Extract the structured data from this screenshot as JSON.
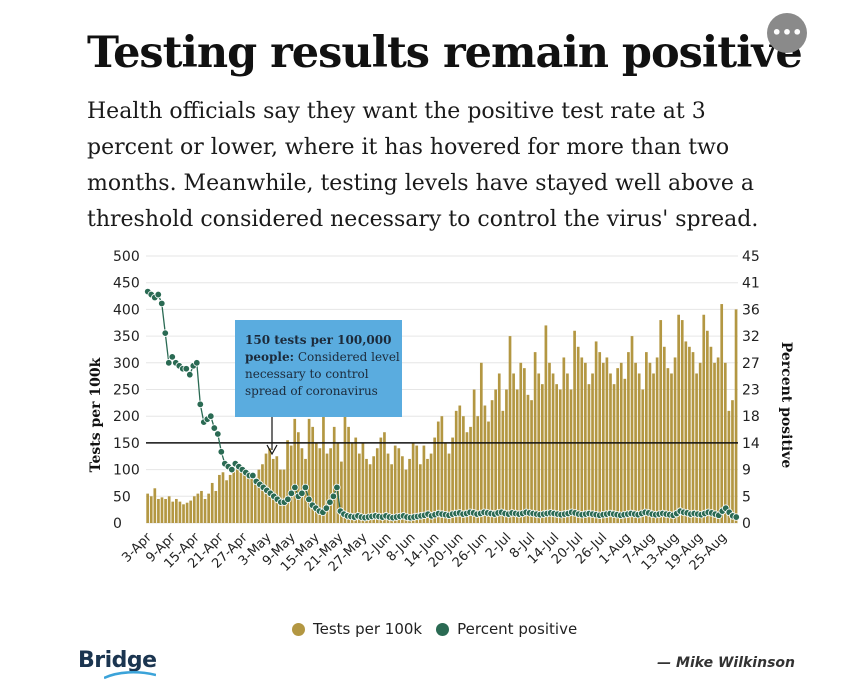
{
  "header": {
    "title": "Testing results remain positive",
    "subtitle": "Health officials say they want the positive test rate at 3 percent or lower, where it has hovered for more than two months. Meanwhile, testing levels have stayed well above a threshold considered necessary to control the virus' spread.",
    "menu_label": "•••"
  },
  "chart_data": {
    "type": "bar",
    "x_tick_labels": [
      "3-Apr",
      "9-Apr",
      "15-Apr",
      "21-Apr",
      "27-Apr",
      "3-May",
      "9-May",
      "15-May",
      "21-May",
      "27-May",
      "2-Jun",
      "8-Jun",
      "14-Jun",
      "20-Jun",
      "26-Jun",
      "2-Jul",
      "8-Jul",
      "14-Jul",
      "20-Jul",
      "26-Jul",
      "1-Aug",
      "7-Aug",
      "13-Aug",
      "19-Aug",
      "25-Aug"
    ],
    "left_axis": {
      "label": "Tests per 100k",
      "ylim": [
        0,
        500
      ],
      "ticks": [
        0,
        50,
        100,
        150,
        200,
        250,
        300,
        350,
        400,
        450,
        500
      ]
    },
    "right_axis": {
      "label": "Percent positive",
      "ylim": [
        0,
        45
      ],
      "ticks": [
        "0",
        "5",
        "9",
        "14",
        "18",
        "23",
        "27",
        "32",
        "36",
        "41",
        "45"
      ]
    },
    "series": [
      {
        "name": "Tests per 100k",
        "axis": "left",
        "color": "#b39742",
        "values": [
          55,
          50,
          65,
          45,
          48,
          45,
          50,
          40,
          45,
          40,
          35,
          38,
          42,
          50,
          55,
          60,
          45,
          55,
          75,
          60,
          90,
          95,
          80,
          90,
          100,
          110,
          105,
          100,
          95,
          90,
          85,
          100,
          110,
          130,
          140,
          120,
          125,
          100,
          100,
          155,
          145,
          195,
          170,
          140,
          120,
          195,
          180,
          150,
          140,
          210,
          130,
          140,
          180,
          150,
          115,
          200,
          180,
          150,
          160,
          130,
          150,
          120,
          110,
          125,
          140,
          160,
          170,
          130,
          110,
          145,
          140,
          125,
          100,
          120,
          150,
          145,
          110,
          145,
          120,
          130,
          160,
          190,
          200,
          150,
          130,
          160,
          210,
          220,
          200,
          170,
          180,
          250,
          200,
          300,
          220,
          190,
          230,
          250,
          280,
          210,
          250,
          350,
          280,
          250,
          300,
          290,
          240,
          230,
          320,
          280,
          260,
          370,
          300,
          280,
          260,
          250,
          310,
          280,
          250,
          360,
          330,
          310,
          300,
          260,
          280,
          340,
          320,
          300,
          310,
          280,
          260,
          290,
          300,
          270,
          320,
          350,
          300,
          280,
          250,
          320,
          300,
          280,
          310,
          380,
          330,
          290,
          280,
          310,
          390,
          380,
          340,
          330,
          320,
          280,
          300,
          390,
          360,
          330,
          300,
          310,
          410,
          300,
          210,
          230,
          400
        ]
      },
      {
        "name": "Percent positive",
        "axis": "right",
        "color": "#2a6a53",
        "values": [
          39,
          38.5,
          38,
          38.5,
          37,
          32,
          27,
          28,
          27,
          26.5,
          26,
          26,
          25,
          26.5,
          27,
          20,
          17,
          17.5,
          18,
          16,
          15,
          12,
          10,
          9.5,
          9,
          10,
          9.5,
          9,
          8.5,
          8,
          8,
          7,
          6.5,
          6,
          5.5,
          5,
          4.5,
          4,
          3.5,
          3.5,
          4,
          5,
          6,
          4.5,
          5,
          6,
          4,
          3,
          2.5,
          2,
          1.8,
          2.5,
          3.5,
          4.5,
          6,
          2,
          1.5,
          1.2,
          1.1,
          1,
          1.2,
          1,
          0.9,
          1,
          1.1,
          1.2,
          1.1,
          1,
          1.2,
          1,
          0.9,
          1,
          1.1,
          1.2,
          1,
          0.9,
          1,
          1.1,
          1.2,
          1.3,
          1.5,
          1.2,
          1.4,
          1.6,
          1.5,
          1.4,
          1.3,
          1.5,
          1.6,
          1.7,
          1.5,
          1.6,
          1.8,
          1.7,
          1.5,
          1.6,
          1.8,
          1.7,
          1.6,
          1.5,
          1.7,
          1.8,
          1.6,
          1.5,
          1.7,
          1.6,
          1.5,
          1.6,
          1.8,
          1.7,
          1.6,
          1.5,
          1.4,
          1.5,
          1.6,
          1.7,
          1.6,
          1.5,
          1.4,
          1.5,
          1.6,
          1.8,
          1.7,
          1.5,
          1.4,
          1.5,
          1.6,
          1.5,
          1.4,
          1.3,
          1.4,
          1.5,
          1.6,
          1.5,
          1.4,
          1.3,
          1.4,
          1.5,
          1.6,
          1.5,
          1.4,
          1.6,
          1.8,
          1.7,
          1.5,
          1.4,
          1.5,
          1.6,
          1.5,
          1.4,
          1.3,
          1.6,
          2,
          1.8,
          1.7,
          1.5,
          1.6,
          1.5,
          1.4,
          1.6,
          1.8,
          1.7,
          1.5,
          1.3,
          2,
          2.5,
          1.8,
          1.2,
          1
        ]
      }
    ],
    "threshold": {
      "value": 150,
      "axis": "left"
    },
    "annotation": {
      "bold": "150 tests per 100,000 people:",
      "text": " Considered level necessary to control spread of coronavirus"
    },
    "legend_placement": "bottom-center"
  },
  "legend": {
    "items": [
      {
        "label": "Tests per 100k",
        "color": "#b39742"
      },
      {
        "label": "Percent positive",
        "color": "#2a6a53"
      }
    ]
  },
  "footer": {
    "brand": "Bridge",
    "credit": "— Mike Wilkinson"
  }
}
